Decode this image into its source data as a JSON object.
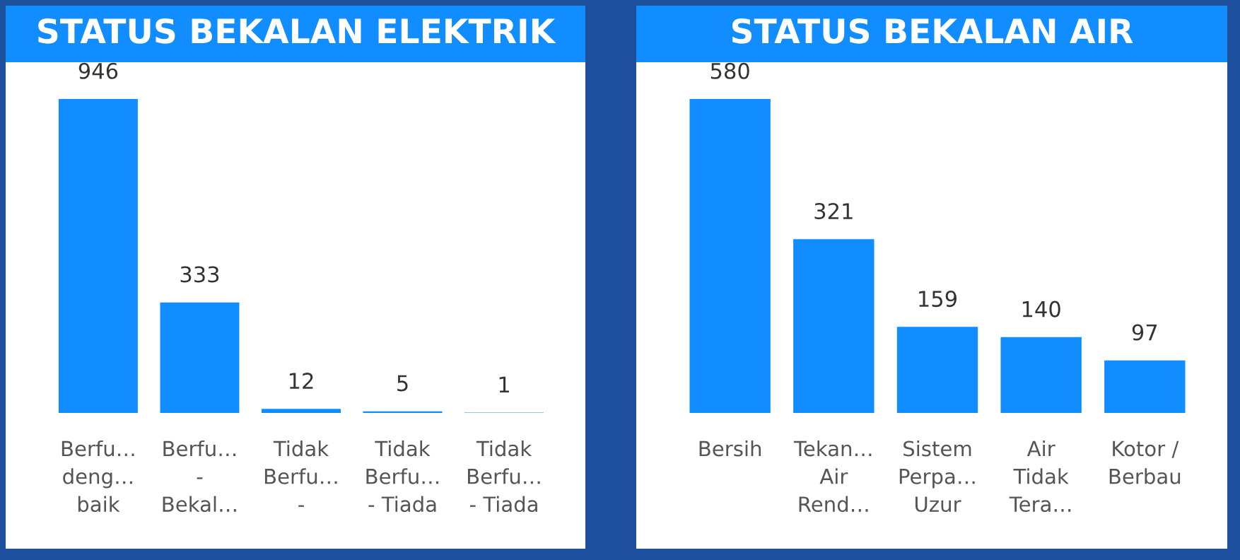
{
  "chart_data": [
    {
      "type": "bar",
      "title": "STATUS BEKALAN ELEKTRIK",
      "categories": [
        "Berfu…\ndeng…\nbaik",
        "Berfu…\n-\nBekal…",
        "Tidak\nBerfu…\n-",
        "Tidak\nBerfu…\n- Tiada",
        "Tidak\nBerfu…\n- Tiada"
      ],
      "values": [
        946,
        333,
        12,
        5,
        1
      ],
      "color": "#118dff",
      "data_labels": true
    },
    {
      "type": "bar",
      "title": "STATUS BEKALAN AIR",
      "categories": [
        "Bersih",
        "Tekan…\nAir\nRend…",
        "Sistem\nPerpa…\nUzur",
        "Air\nTidak\nTera…",
        "Kotor /\nBerbau"
      ],
      "values": [
        580,
        321,
        159,
        140,
        97
      ],
      "color": "#118dff",
      "data_labels": true
    }
  ]
}
